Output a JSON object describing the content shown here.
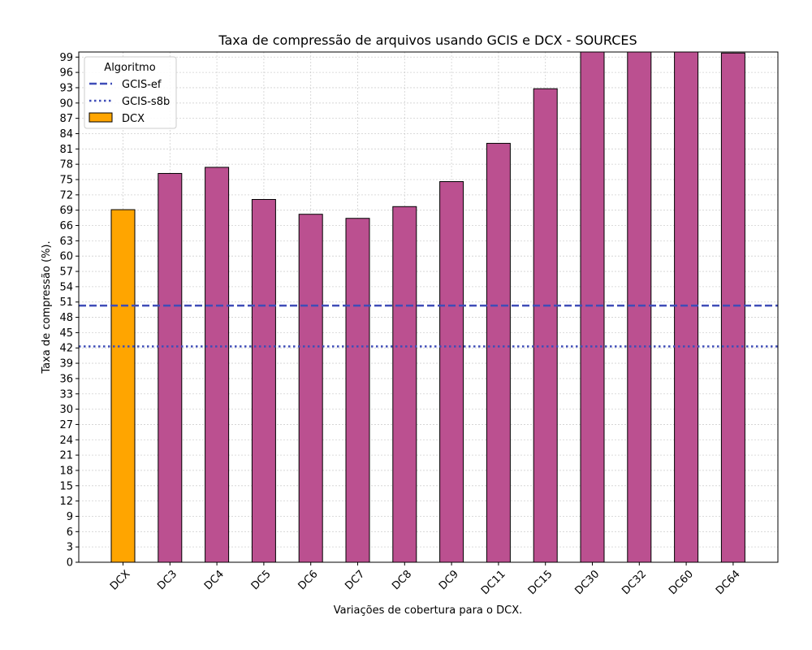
{
  "chart_data": {
    "type": "bar",
    "title": "Taxa de compressão de arquivos usando GCIS e DCX -  SOURCES",
    "xlabel": "Variações de cobertura para o DCX.",
    "ylabel": "Taxa de compressão (%).",
    "ylim": [
      0,
      100
    ],
    "yticks": [
      0,
      3,
      6,
      9,
      12,
      15,
      18,
      21,
      24,
      27,
      30,
      33,
      36,
      39,
      42,
      45,
      48,
      51,
      54,
      57,
      60,
      63,
      66,
      69,
      72,
      75,
      78,
      81,
      84,
      87,
      90,
      93,
      96,
      99
    ],
    "grid": true,
    "categories": [
      "DCX",
      "DC3",
      "DC4",
      "DC5",
      "DC6",
      "DC7",
      "DC8",
      "DC9",
      "DC11",
      "DC15",
      "DC30",
      "DC32",
      "DC60",
      "DC64"
    ],
    "values": [
      69.1,
      76.2,
      77.4,
      71.1,
      68.2,
      67.4,
      69.7,
      74.6,
      82.1,
      92.8,
      100.0,
      100.0,
      100.0,
      99.8
    ],
    "bar_colors": [
      "#FFA500",
      "#BB5090",
      "#BB5090",
      "#BB5090",
      "#BB5090",
      "#BB5090",
      "#BB5090",
      "#BB5090",
      "#BB5090",
      "#BB5090",
      "#BB5090",
      "#BB5090",
      "#BB5090",
      "#BB5090"
    ],
    "reference_lines": [
      {
        "name": "GCIS-ef",
        "value": 50.3,
        "style": "dashed",
        "color": "#3F4DB8"
      },
      {
        "name": "GCIS-s8b",
        "value": 42.3,
        "style": "dotted",
        "color": "#3F4DB8"
      }
    ],
    "legend": {
      "title": "Algoritmo",
      "placement": "top-left",
      "entries": [
        {
          "label": "GCIS-ef",
          "kind": "dashed-line",
          "color": "#3F4DB8"
        },
        {
          "label": "GCIS-s8b",
          "kind": "dotted-line",
          "color": "#3F4DB8"
        },
        {
          "label": "DCX",
          "kind": "patch",
          "color": "#FFA500"
        }
      ]
    }
  }
}
